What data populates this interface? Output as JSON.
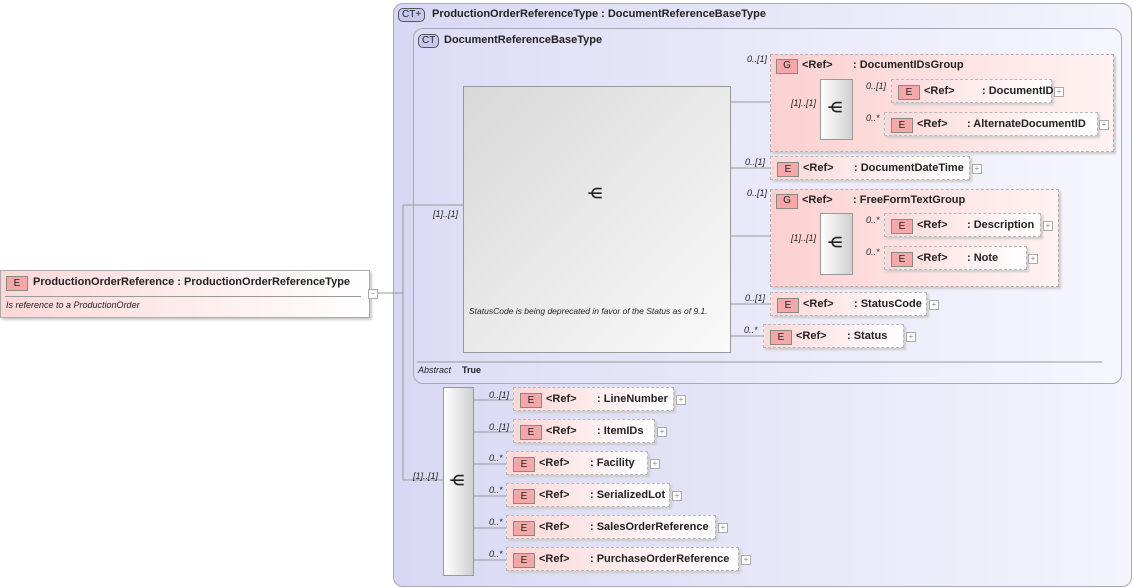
{
  "outer_type": {
    "badge": "CT+",
    "title": "ProductionOrderReferenceType : DocumentReferenceBaseType"
  },
  "inner_type": {
    "badge": "CT",
    "title": "DocumentReferenceBaseType",
    "annotation": "StatusCode is being deprecated in favor of the Status as of 9.1.",
    "abstract_label": "Abstract",
    "abstract_value": "True"
  },
  "root": {
    "badge": "E",
    "title": "ProductionOrderReference : ProductionOrderReferenceType",
    "doc": "Is reference to a ProductionOrder"
  },
  "ref": "<Ref>",
  "cards": {
    "c01": "0..[1]",
    "c11": "[1]..[1]",
    "c0s": "0..*"
  },
  "groups": [
    {
      "badge": "G",
      "name": ": DocumentIDsGroup"
    },
    {
      "badge": "G",
      "name": ": FreeFormTextGroup"
    }
  ],
  "elements": {
    "DocumentID": ": DocumentID",
    "AlternateDocumentID": ": AlternateDocumentID",
    "DocumentDateTime": ": DocumentDateTime",
    "Description": ": Description",
    "Note": ": Note",
    "StatusCode": ": StatusCode",
    "Status": ": Status",
    "LineNumber": ": LineNumber",
    "ItemIDs": ": ItemIDs",
    "Facility": ": Facility",
    "SerializedLot": ": SerializedLot",
    "SalesOrderReference": ": SalesOrderReference",
    "PurchaseOrderReference": ": PurchaseOrderReference"
  },
  "badge_e": "E"
}
